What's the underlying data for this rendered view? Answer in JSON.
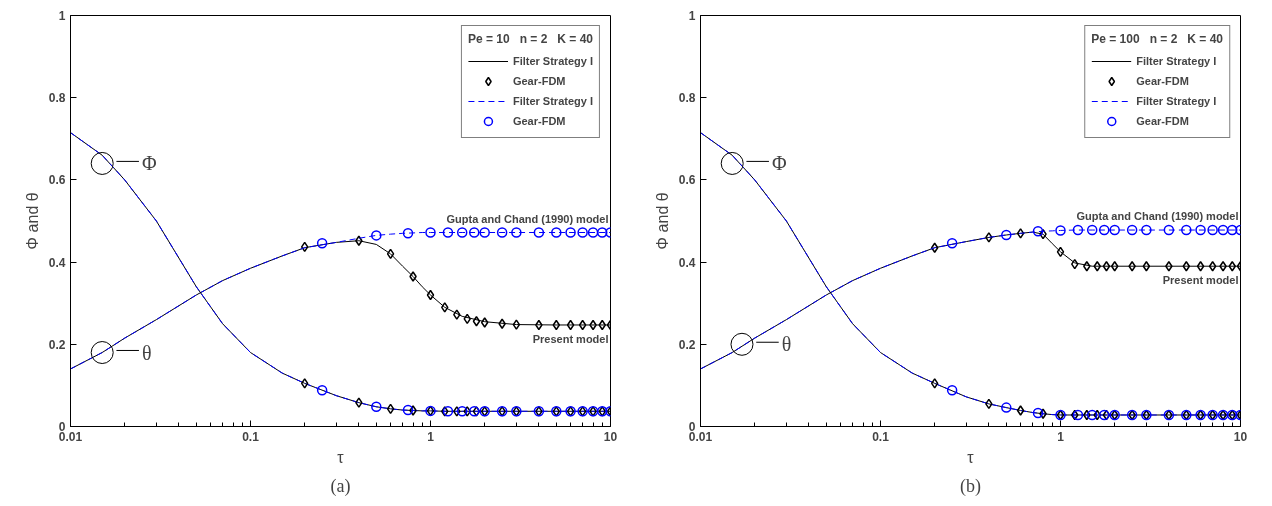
{
  "chart_data": [
    {
      "type": "line",
      "xlabel": "τ",
      "ylabel": "Φ and θ",
      "log": "x",
      "xlim": [
        0.01,
        10
      ],
      "ylim": [
        0,
        1
      ],
      "xticks": [
        0.01,
        0.1,
        1,
        10
      ],
      "yticks": [
        0,
        0.2,
        0.4,
        0.6,
        0.8,
        1
      ],
      "grid": false,
      "legend": "top right",
      "legend_title": "Pe = 10   n = 2   K = 40",
      "annotations": [
        {
          "text": "Φ",
          "x": 0.015,
          "y": 0.64
        },
        {
          "text": "θ",
          "x": 0.015,
          "y": 0.18
        },
        {
          "text": "Gupta and Chand (1990) model",
          "x": 10,
          "y": 0.472
        },
        {
          "text": "Present model",
          "x": 10,
          "y": 0.247
        },
        "(a)"
      ],
      "series": [
        {
          "name": "Filter Strategy I",
          "color": "#000000",
          "line_style": "solid",
          "marker": "none",
          "x": [
            0.01,
            0.015,
            0.02,
            0.03,
            0.05,
            0.07,
            0.1,
            0.15,
            0.2,
            0.3,
            0.4,
            0.5,
            0.6,
            0.7,
            0.8,
            0.9,
            1,
            1.2,
            1.5,
            2,
            3,
            5,
            10
          ],
          "values": [
            0.14,
            0.18,
            0.215,
            0.26,
            0.32,
            0.355,
            0.385,
            0.415,
            0.435,
            0.448,
            0.452,
            0.443,
            0.42,
            0.39,
            0.365,
            0.34,
            0.32,
            0.29,
            0.268,
            0.255,
            0.248,
            0.247,
            0.247
          ]
        },
        {
          "name": "Gear-FDM",
          "type": "scatter",
          "color": "#000000",
          "marker": "diamond",
          "x": [
            0.2,
            0.4,
            0.6,
            0.8,
            1,
            1.2,
            1.4,
            1.6,
            1.8,
            2,
            2.5,
            3,
            4,
            5,
            6,
            7,
            8,
            9,
            10
          ],
          "values": [
            0.437,
            0.452,
            0.42,
            0.365,
            0.32,
            0.29,
            0.272,
            0.262,
            0.256,
            0.253,
            0.25,
            0.248,
            0.247,
            0.247,
            0.247,
            0.247,
            0.247,
            0.247,
            0.247
          ]
        },
        {
          "name": "Filter Strategy I",
          "color": "#0000ff",
          "line_style": "dashed",
          "marker": "none",
          "x": [
            0.01,
            0.015,
            0.02,
            0.03,
            0.05,
            0.07,
            0.1,
            0.15,
            0.2,
            0.3,
            0.4,
            0.5,
            0.6,
            0.7,
            0.8,
            0.9,
            1,
            1.2,
            1.5,
            2,
            3,
            5,
            10
          ],
          "values": [
            0.14,
            0.18,
            0.215,
            0.26,
            0.32,
            0.355,
            0.385,
            0.415,
            0.435,
            0.448,
            0.458,
            0.465,
            0.468,
            0.47,
            0.471,
            0.472,
            0.472,
            0.472,
            0.472,
            0.472,
            0.472,
            0.472,
            0.472
          ]
        },
        {
          "name": "Gear-FDM",
          "type": "scatter",
          "color": "#0000ff",
          "marker": "circle",
          "x": [
            0.25,
            0.5,
            0.75,
            1,
            1.25,
            1.5,
            1.75,
            2,
            2.5,
            3,
            4,
            5,
            6,
            7,
            8,
            9,
            10
          ],
          "values": [
            0.446,
            0.465,
            0.47,
            0.472,
            0.472,
            0.472,
            0.472,
            0.472,
            0.472,
            0.472,
            0.472,
            0.472,
            0.472,
            0.472,
            0.472,
            0.472,
            0.472
          ]
        },
        {
          "color": "#000000",
          "line_style": "solid",
          "marker": "none",
          "x": [
            0.01,
            0.015,
            0.02,
            0.03,
            0.05,
            0.07,
            0.1,
            0.15,
            0.2,
            0.3,
            0.4,
            0.5,
            0.6,
            0.7,
            0.8,
            0.9,
            1,
            1.2,
            1.5,
            2,
            3,
            5,
            10
          ],
          "values": [
            0.715,
            0.66,
            0.6,
            0.5,
            0.34,
            0.25,
            0.18,
            0.13,
            0.105,
            0.075,
            0.058,
            0.048,
            0.043,
            0.04,
            0.039,
            0.038,
            0.038,
            0.037,
            0.037,
            0.037,
            0.037,
            0.037,
            0.037
          ]
        },
        {
          "color": "#0000ff",
          "line_style": "dashed",
          "marker": "none",
          "x": [
            0.01,
            0.015,
            0.02,
            0.03,
            0.05,
            0.07,
            0.1,
            0.15,
            0.2,
            0.3,
            0.4,
            0.5,
            0.6,
            0.7,
            0.8,
            0.9,
            1,
            1.2,
            1.5,
            2,
            3,
            5,
            10
          ],
          "values": [
            0.715,
            0.66,
            0.6,
            0.5,
            0.34,
            0.25,
            0.18,
            0.13,
            0.105,
            0.075,
            0.058,
            0.048,
            0.043,
            0.04,
            0.039,
            0.038,
            0.038,
            0.037,
            0.037,
            0.037,
            0.037,
            0.037,
            0.037
          ]
        },
        {
          "type": "scatter",
          "color": "#000000",
          "marker": "diamond",
          "x": [
            0.2,
            0.4,
            0.6,
            0.8,
            1,
            1.2,
            1.4,
            1.6,
            1.8,
            2,
            2.5,
            3,
            4,
            5,
            6,
            7,
            8,
            9,
            10
          ],
          "values": [
            0.105,
            0.058,
            0.043,
            0.039,
            0.038,
            0.037,
            0.037,
            0.037,
            0.037,
            0.037,
            0.037,
            0.037,
            0.037,
            0.037,
            0.037,
            0.037,
            0.037,
            0.037,
            0.037
          ]
        },
        {
          "type": "scatter",
          "color": "#0000ff",
          "marker": "circle",
          "x": [
            0.25,
            0.5,
            0.75,
            1,
            1.25,
            1.5,
            1.75,
            2,
            2.5,
            3,
            4,
            5,
            6,
            7,
            8,
            9,
            10
          ],
          "values": [
            0.088,
            0.048,
            0.04,
            0.038,
            0.037,
            0.037,
            0.037,
            0.037,
            0.037,
            0.037,
            0.037,
            0.037,
            0.037,
            0.037,
            0.037,
            0.037,
            0.037
          ]
        }
      ]
    },
    {
      "type": "line",
      "xlabel": "τ",
      "ylabel": "Φ and θ",
      "log": "x",
      "xlim": [
        0.01,
        10
      ],
      "ylim": [
        0,
        1
      ],
      "xticks": [
        0.01,
        0.1,
        1,
        10
      ],
      "yticks": [
        0,
        0.2,
        0.4,
        0.6,
        0.8,
        1
      ],
      "grid": false,
      "legend": "top right",
      "legend_title": "Pe = 100   n = 2   K = 40",
      "annotations": [
        {
          "text": "Φ",
          "x": 0.015,
          "y": 0.64
        },
        {
          "text": "θ",
          "x": 0.017,
          "y": 0.2
        },
        {
          "text": "Gupta and Chand (1990) model",
          "x": 10,
          "y": 0.478
        },
        {
          "text": "Present model",
          "x": 10,
          "y": 0.39
        },
        "(b)"
      ],
      "series": [
        {
          "name": "Filter Strategy I",
          "color": "#000000",
          "line_style": "solid",
          "marker": "none",
          "x": [
            0.01,
            0.015,
            0.02,
            0.03,
            0.05,
            0.07,
            0.1,
            0.15,
            0.2,
            0.3,
            0.4,
            0.5,
            0.6,
            0.7,
            0.8,
            0.9,
            1,
            1.2,
            1.5,
            2,
            3,
            5,
            10
          ],
          "values": [
            0.14,
            0.18,
            0.215,
            0.26,
            0.32,
            0.355,
            0.385,
            0.415,
            0.435,
            0.45,
            0.46,
            0.466,
            0.47,
            0.473,
            0.468,
            0.445,
            0.425,
            0.398,
            0.39,
            0.39,
            0.39,
            0.39,
            0.39
          ]
        },
        {
          "name": "Gear-FDM",
          "type": "scatter",
          "color": "#000000",
          "marker": "diamond",
          "x": [
            0.2,
            0.4,
            0.6,
            0.8,
            1,
            1.2,
            1.4,
            1.6,
            1.8,
            2,
            2.5,
            3,
            4,
            5,
            6,
            7,
            8,
            9,
            10
          ],
          "values": [
            0.435,
            0.46,
            0.47,
            0.468,
            0.425,
            0.395,
            0.39,
            0.39,
            0.39,
            0.39,
            0.39,
            0.39,
            0.39,
            0.39,
            0.39,
            0.39,
            0.39,
            0.39,
            0.39
          ]
        },
        {
          "name": "Filter Strategy I",
          "color": "#0000ff",
          "line_style": "dashed",
          "marker": "none",
          "x": [
            0.01,
            0.015,
            0.02,
            0.03,
            0.05,
            0.07,
            0.1,
            0.15,
            0.2,
            0.3,
            0.4,
            0.5,
            0.6,
            0.7,
            0.8,
            0.9,
            1,
            1.2,
            1.5,
            2,
            3,
            5,
            10
          ],
          "values": [
            0.14,
            0.18,
            0.215,
            0.26,
            0.32,
            0.355,
            0.385,
            0.415,
            0.435,
            0.45,
            0.46,
            0.466,
            0.47,
            0.473,
            0.475,
            0.476,
            0.477,
            0.478,
            0.478,
            0.478,
            0.478,
            0.478,
            0.478
          ]
        },
        {
          "name": "Gear-FDM",
          "type": "scatter",
          "color": "#0000ff",
          "marker": "circle",
          "x": [
            0.25,
            0.5,
            0.75,
            1,
            1.25,
            1.5,
            1.75,
            2,
            2.5,
            3,
            4,
            5,
            6,
            7,
            8,
            9,
            10
          ],
          "values": [
            0.446,
            0.466,
            0.475,
            0.477,
            0.478,
            0.478,
            0.478,
            0.478,
            0.478,
            0.478,
            0.478,
            0.478,
            0.478,
            0.478,
            0.478,
            0.478,
            0.478
          ]
        },
        {
          "color": "#000000",
          "line_style": "solid",
          "marker": "none",
          "x": [
            0.01,
            0.015,
            0.02,
            0.03,
            0.05,
            0.07,
            0.1,
            0.15,
            0.2,
            0.3,
            0.4,
            0.5,
            0.6,
            0.7,
            0.8,
            0.9,
            1,
            1.2,
            1.5,
            2,
            3,
            5,
            10
          ],
          "values": [
            0.715,
            0.66,
            0.6,
            0.5,
            0.34,
            0.25,
            0.18,
            0.13,
            0.105,
            0.072,
            0.055,
            0.046,
            0.039,
            0.034,
            0.031,
            0.029,
            0.028,
            0.028,
            0.028,
            0.028,
            0.028,
            0.028,
            0.028
          ]
        },
        {
          "color": "#0000ff",
          "line_style": "dashed",
          "marker": "none",
          "x": [
            0.01,
            0.015,
            0.02,
            0.03,
            0.05,
            0.07,
            0.1,
            0.15,
            0.2,
            0.3,
            0.4,
            0.5,
            0.6,
            0.7,
            0.8,
            0.9,
            1,
            1.2,
            1.5,
            2,
            3,
            5,
            10
          ],
          "values": [
            0.715,
            0.66,
            0.6,
            0.5,
            0.34,
            0.25,
            0.18,
            0.13,
            0.105,
            0.072,
            0.055,
            0.046,
            0.039,
            0.034,
            0.031,
            0.029,
            0.028,
            0.028,
            0.028,
            0.028,
            0.028,
            0.028,
            0.028
          ]
        },
        {
          "type": "scatter",
          "color": "#000000",
          "marker": "diamond",
          "x": [
            0.2,
            0.4,
            0.6,
            0.8,
            1,
            1.2,
            1.4,
            1.6,
            1.8,
            2,
            2.5,
            3,
            4,
            5,
            6,
            7,
            8,
            9,
            10
          ],
          "values": [
            0.105,
            0.055,
            0.039,
            0.031,
            0.028,
            0.028,
            0.028,
            0.028,
            0.028,
            0.028,
            0.028,
            0.028,
            0.028,
            0.028,
            0.028,
            0.028,
            0.028,
            0.028,
            0.028
          ]
        },
        {
          "type": "scatter",
          "color": "#0000ff",
          "marker": "circle",
          "x": [
            0.25,
            0.5,
            0.75,
            1,
            1.25,
            1.5,
            1.75,
            2,
            2.5,
            3,
            4,
            5,
            6,
            7,
            8,
            9,
            10
          ],
          "values": [
            0.088,
            0.046,
            0.033,
            0.028,
            0.028,
            0.028,
            0.028,
            0.028,
            0.028,
            0.028,
            0.028,
            0.028,
            0.028,
            0.028,
            0.028,
            0.028,
            0.028
          ]
        }
      ]
    }
  ]
}
